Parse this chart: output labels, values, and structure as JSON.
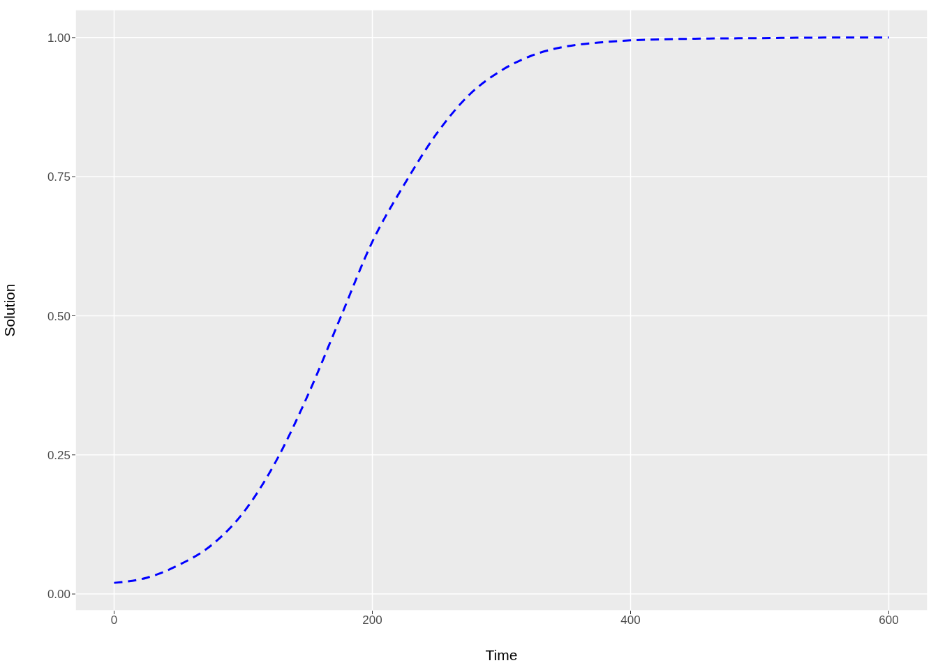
{
  "chart_data": {
    "type": "line",
    "xlabel": "Time",
    "ylabel": "Solution",
    "x": [
      0,
      25,
      50,
      75,
      100,
      125,
      150,
      175,
      200,
      225,
      250,
      275,
      300,
      325,
      350,
      375,
      400,
      450,
      500,
      550,
      600
    ],
    "series": [
      {
        "color": "#0000ff",
        "values": [
          0.02,
          0.029,
          0.052,
          0.087,
          0.146,
          0.237,
          0.357,
          0.495,
          0.633,
          0.737,
          0.828,
          0.897,
          0.941,
          0.969,
          0.984,
          0.991,
          0.995,
          0.998,
          0.999,
          1.0,
          1.0
        ]
      }
    ],
    "xlim": [
      -30,
      630
    ],
    "xticks": [
      0,
      200,
      400,
      600
    ],
    "ylim": [
      -0.03,
      1.05
    ],
    "yticks": [
      {
        "value": 0,
        "label": "0.00"
      },
      {
        "value": 0.25,
        "label": "0.25"
      },
      {
        "value": 0.5,
        "label": "0.50"
      },
      {
        "value": 0.75,
        "label": "0.75"
      },
      {
        "value": 1,
        "label": "1.00"
      }
    ],
    "grid": true,
    "line_style": "dashed",
    "marker": "none"
  }
}
